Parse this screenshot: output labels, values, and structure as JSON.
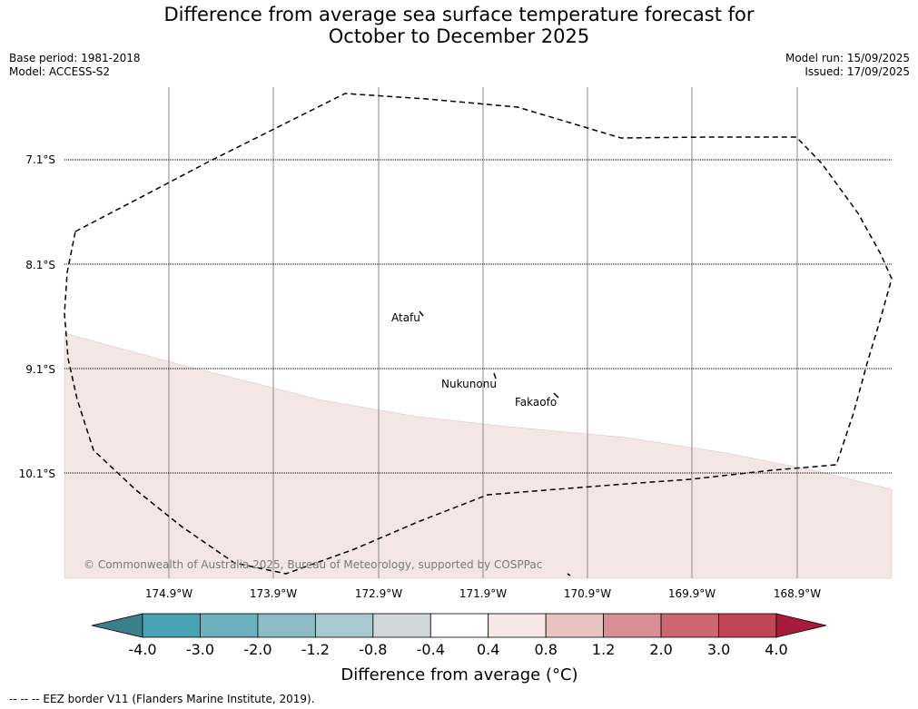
{
  "header": {
    "title_line1": "Difference from average sea surface temperature forecast for",
    "title_line2": "October to December 2025",
    "base_period": "Base period: 1981-2018",
    "model": "Model: ACCESS-S2",
    "model_run": "Model run: 15/09/2025",
    "issued": "Issued: 17/09/2025"
  },
  "map": {
    "lat_labels": [
      "7.1°S",
      "8.1°S",
      "9.1°S",
      "10.1°S"
    ],
    "lon_labels": [
      "174.9°W",
      "173.9°W",
      "172.9°W",
      "171.9°W",
      "170.9°W",
      "169.9°W",
      "168.9°W"
    ],
    "islands": [
      {
        "name": "Atafu",
        "lon": -172.52,
        "lat": -8.55
      },
      {
        "name": "Nukunonu",
        "lon": -171.81,
        "lat": -9.17
      },
      {
        "name": "Fakaofo",
        "lon": -171.25,
        "lat": -9.36
      }
    ],
    "copyright": "© Commonwealth of Australia 2025, Bureau of Meteorology, supported by COSPPac",
    "shading_color": "#f3e6e5",
    "shaded_category": "0.4 to 0.8"
  },
  "colorbar": {
    "tick_labels": [
      "-4.0",
      "-3.0",
      "-2.0",
      "-1.2",
      "-0.8",
      "-0.4",
      "0.4",
      "0.8",
      "1.2",
      "2.0",
      "3.0",
      "4.0"
    ],
    "colors": [
      "#3b7f8a",
      "#47a2b4",
      "#6ab0bf",
      "#8cbac5",
      "#a8c9cf",
      "#d2d7da",
      "#ffffff",
      "#f7e7e6",
      "#e8c4c1",
      "#d88e94",
      "#cc6671",
      "#c04656",
      "#a81c3b"
    ],
    "title": "Difference from average (°C)"
  },
  "footer": {
    "legend_text": "--  --  -- EEZ border V11 (Flanders Marine Institute, 2019)."
  }
}
